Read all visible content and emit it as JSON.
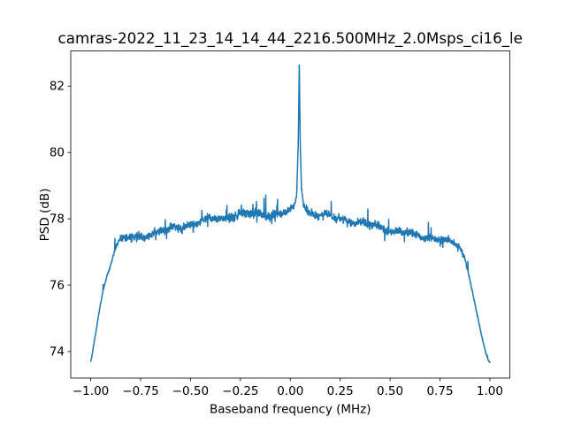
{
  "figure": {
    "background": "#ffffff",
    "text_color": "#000000",
    "spine_color": "#000000"
  },
  "chart_data": {
    "type": "line",
    "title": "camras-2022_11_23_14_14_44_2216.500MHz_2.0Msps_ci16_le",
    "xlabel": "Baseband frequency (MHz)",
    "ylabel": "PSD (dB)",
    "xlim": [
      -1.1,
      1.1
    ],
    "ylim": [
      73.2,
      83.06
    ],
    "xticks": [
      -1.0,
      -0.75,
      -0.5,
      -0.25,
      0.0,
      0.25,
      0.5,
      0.75,
      1.0
    ],
    "xtick_labels": [
      "−1.00",
      "−0.75",
      "−0.50",
      "−0.25",
      "0.00",
      "0.25",
      "0.50",
      "0.75",
      "1.00"
    ],
    "yticks": [
      74,
      76,
      78,
      80,
      82
    ],
    "ytick_labels": [
      "74",
      "76",
      "78",
      "80",
      "82"
    ],
    "grid": false,
    "line_color": "#1f77b4",
    "line_width": 1.5,
    "peak": {
      "x_mhz": 0.045,
      "psd_db": 82.65
    },
    "series": [
      {
        "name": "PSD",
        "n_points": 1800,
        "envelope_format": [
          "x_mhz",
          "psd_db",
          "noise_scale"
        ],
        "envelope": [
          [
            -1.0,
            73.7,
            0.2
          ],
          [
            -0.995,
            73.82,
            0.2
          ],
          [
            -0.985,
            74.2,
            0.25
          ],
          [
            -0.97,
            74.75,
            0.3
          ],
          [
            -0.955,
            75.3,
            0.3
          ],
          [
            -0.94,
            75.78,
            0.35
          ],
          [
            -0.925,
            76.15,
            0.4
          ],
          [
            -0.91,
            76.45,
            0.45
          ],
          [
            -0.898,
            76.68,
            0.5
          ],
          [
            -0.886,
            76.95,
            0.55
          ],
          [
            -0.874,
            77.15,
            0.65
          ],
          [
            -0.862,
            77.28,
            0.8
          ],
          [
            -0.848,
            77.36,
            1.0
          ],
          [
            -0.81,
            77.42,
            1.0
          ],
          [
            -0.76,
            77.47,
            1.0
          ],
          [
            -0.71,
            77.53,
            1.0
          ],
          [
            -0.66,
            77.6,
            1.0
          ],
          [
            -0.61,
            77.68,
            1.0
          ],
          [
            -0.56,
            77.76,
            1.0
          ],
          [
            -0.51,
            77.83,
            1.0
          ],
          [
            -0.46,
            77.9,
            1.0
          ],
          [
            -0.41,
            77.96,
            1.1
          ],
          [
            -0.36,
            78.02,
            1.1
          ],
          [
            -0.31,
            78.07,
            1.15
          ],
          [
            -0.26,
            78.11,
            1.2
          ],
          [
            -0.21,
            78.13,
            1.2
          ],
          [
            -0.16,
            78.14,
            1.2
          ],
          [
            -0.11,
            78.12,
            1.1
          ],
          [
            -0.06,
            78.13,
            1.0
          ],
          [
            -0.03,
            78.17,
            0.9
          ],
          [
            0.0,
            78.24,
            0.8
          ],
          [
            0.02,
            78.35,
            0.6
          ],
          [
            0.032,
            78.72,
            0.4
          ],
          [
            0.04,
            80.3,
            0.2
          ],
          [
            0.045,
            82.65,
            0.1
          ],
          [
            0.05,
            80.2,
            0.2
          ],
          [
            0.056,
            78.95,
            0.4
          ],
          [
            0.066,
            78.45,
            0.6
          ],
          [
            0.08,
            78.28,
            0.8
          ],
          [
            0.1,
            78.17,
            1.0
          ],
          [
            0.15,
            78.1,
            1.1
          ],
          [
            0.2,
            78.05,
            1.1
          ],
          [
            0.25,
            78.0,
            1.1
          ],
          [
            0.3,
            77.93,
            1.05
          ],
          [
            0.35,
            77.87,
            1.0
          ],
          [
            0.4,
            77.8,
            1.0
          ],
          [
            0.45,
            77.74,
            1.0
          ],
          [
            0.5,
            77.67,
            1.0
          ],
          [
            0.55,
            77.6,
            1.0
          ],
          [
            0.6,
            77.54,
            0.95
          ],
          [
            0.65,
            77.48,
            0.9
          ],
          [
            0.7,
            77.43,
            0.9
          ],
          [
            0.75,
            77.38,
            0.9
          ],
          [
            0.8,
            77.31,
            0.85
          ],
          [
            0.83,
            77.23,
            0.8
          ],
          [
            0.852,
            77.1,
            0.7
          ],
          [
            0.872,
            76.82,
            0.6
          ],
          [
            0.89,
            76.45,
            0.5
          ],
          [
            0.906,
            76.02,
            0.45
          ],
          [
            0.922,
            75.55,
            0.4
          ],
          [
            0.938,
            75.08,
            0.35
          ],
          [
            0.953,
            74.62,
            0.3
          ],
          [
            0.968,
            74.22,
            0.28
          ],
          [
            0.982,
            73.9,
            0.25
          ],
          [
            0.993,
            73.72,
            0.22
          ],
          [
            1.0,
            73.68,
            0.2
          ]
        ],
        "noise": {
          "seed": 1337,
          "sigma_db": 0.055,
          "spike_prob": 0.02
        }
      }
    ]
  }
}
